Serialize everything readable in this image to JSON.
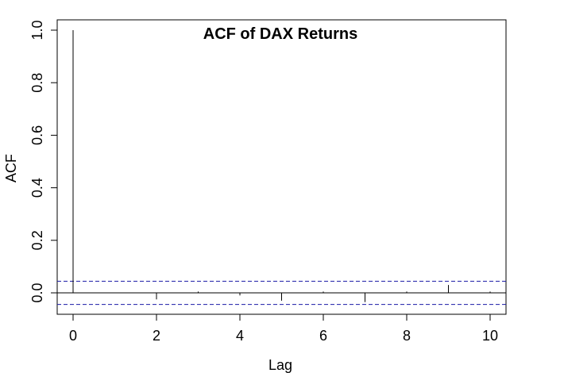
{
  "chart_data": {
    "type": "bar",
    "title": "ACF of DAX Returns",
    "xlabel": "Lag",
    "ylabel": "ACF",
    "xlim": [
      0,
      10
    ],
    "ylim": [
      -0.08,
      1.0
    ],
    "x_ticks": [
      "0",
      "2",
      "4",
      "6",
      "8",
      "10"
    ],
    "y_ticks": [
      "0.0",
      "0.2",
      "0.4",
      "0.6",
      "0.8",
      "1.0"
    ],
    "lags": [
      0,
      1,
      2,
      3,
      4,
      5,
      6,
      7,
      8,
      9,
      10
    ],
    "values": [
      1.0,
      0.0,
      -0.025,
      0.005,
      -0.01,
      -0.03,
      0.005,
      -0.035,
      0.005,
      0.03,
      0.005
    ],
    "confidence_bounds": [
      0.044,
      -0.044
    ],
    "colors": {
      "bars": "#000000",
      "confidence": "#1a1aa6",
      "zero_line": "#000000"
    },
    "grid": false
  }
}
